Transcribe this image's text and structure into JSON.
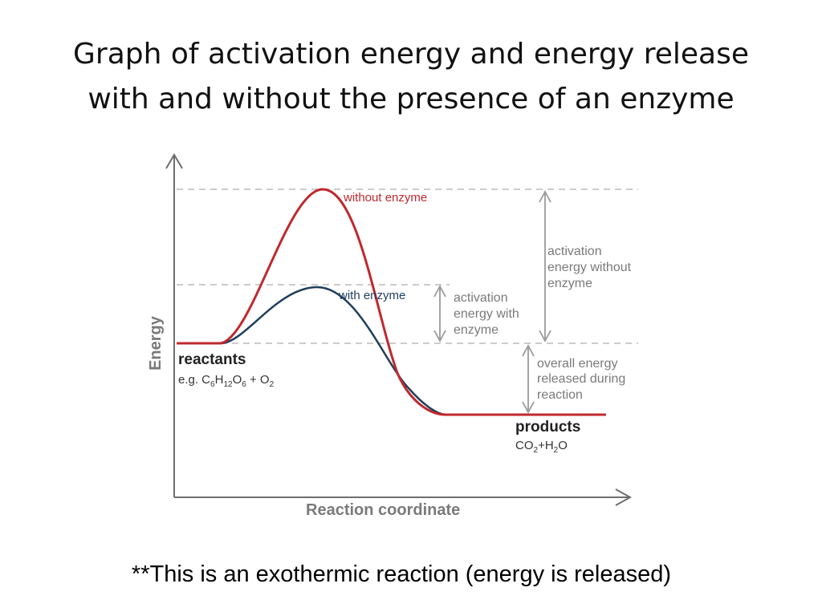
{
  "title": {
    "line1": "Graph of activation energy and energy release",
    "line2": "with and without the presence of an enzyme"
  },
  "diagram": {
    "y_axis_label": "Energy",
    "x_axis_label": "Reaction coordinate",
    "curve_without_label": "without enzyme",
    "curve_with_label": "with enzyme",
    "reactants_label": "reactants",
    "reactants_example": "e.g. C6H12O6 + O2",
    "products_label": "products",
    "products_example": "CO2+H2O",
    "activation_without": [
      "activation",
      "energy without",
      "enzyme"
    ],
    "activation_with": [
      "activation",
      "energy with",
      "enzyme"
    ],
    "overall_release": [
      "overall energy",
      "released during",
      "reaction"
    ],
    "colors": {
      "without_curve": "#c0282d",
      "with_curve": "#1f3f5c",
      "axis": "#6e6e6e",
      "label_gray": "#7a7a7a",
      "dashed": "#bbbbbb"
    }
  },
  "footnote": "**This is an exothermic reaction (energy is released)"
}
